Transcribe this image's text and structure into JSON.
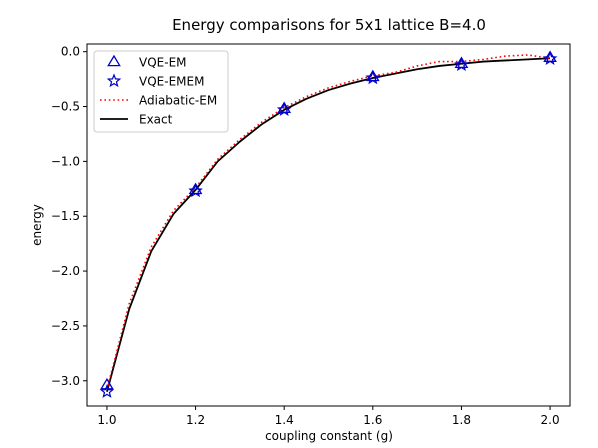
{
  "chart_data": {
    "type": "line",
    "title": "Energy comparisons for 5x1 lattice B=4.0",
    "xlabel": "coupling constant (g)",
    "ylabel": "energy",
    "xlim": [
      0.955,
      2.045
    ],
    "ylim": [
      -3.23,
      0.07
    ],
    "xticks": [
      1.0,
      1.2,
      1.4,
      1.6,
      1.8,
      2.0
    ],
    "xtick_labels": [
      "1.0",
      "1.2",
      "1.4",
      "1.6",
      "1.8",
      "2.0"
    ],
    "yticks": [
      0.0,
      -0.5,
      -1.0,
      -1.5,
      -2.0,
      -2.5,
      -3.0
    ],
    "ytick_labels": [
      "0.0",
      "−0.5",
      "−1.0",
      "−1.5",
      "−2.0",
      "−2.5",
      "−3.0"
    ],
    "grid": false,
    "legend_position": "upper-left",
    "series": [
      {
        "name": "VQE-EM",
        "kind": "markers",
        "marker": "triangle",
        "color": "#0000cc",
        "x": [
          1.0,
          1.2,
          1.4,
          1.6,
          1.8,
          2.0
        ],
        "y": [
          -3.04,
          -1.26,
          -0.52,
          -0.23,
          -0.11,
          -0.055
        ]
      },
      {
        "name": "VQE-EMEM",
        "kind": "markers",
        "marker": "star",
        "color": "#0000cc",
        "x": [
          1.0,
          1.2,
          1.4,
          1.6,
          1.8,
          2.0
        ],
        "y": [
          -3.1,
          -1.27,
          -0.53,
          -0.24,
          -0.12,
          -0.065
        ]
      },
      {
        "name": "Adiabatic-EM",
        "kind": "dotted-line",
        "color": "#ff0000",
        "x": [
          1.0,
          1.05,
          1.1,
          1.15,
          1.2,
          1.25,
          1.3,
          1.35,
          1.4,
          1.45,
          1.5,
          1.55,
          1.6,
          1.65,
          1.7,
          1.75,
          1.8,
          1.85,
          1.9,
          1.95,
          2.0
        ],
        "y": [
          -3.08,
          -2.3,
          -1.78,
          -1.45,
          -1.24,
          -0.98,
          -0.8,
          -0.64,
          -0.51,
          -0.41,
          -0.33,
          -0.27,
          -0.22,
          -0.19,
          -0.13,
          -0.09,
          -0.09,
          -0.07,
          -0.04,
          -0.03,
          -0.06
        ]
      },
      {
        "name": "Exact",
        "kind": "line",
        "color": "#000000",
        "x": [
          1.0,
          1.05,
          1.1,
          1.15,
          1.2,
          1.25,
          1.3,
          1.35,
          1.4,
          1.45,
          1.5,
          1.55,
          1.6,
          1.65,
          1.7,
          1.75,
          1.8,
          1.85,
          1.9,
          1.95,
          2.0
        ],
        "y": [
          -3.1,
          -2.35,
          -1.82,
          -1.48,
          -1.26,
          -1.0,
          -0.82,
          -0.66,
          -0.53,
          -0.43,
          -0.35,
          -0.29,
          -0.24,
          -0.2,
          -0.16,
          -0.13,
          -0.11,
          -0.09,
          -0.08,
          -0.07,
          -0.06
        ]
      }
    ]
  }
}
